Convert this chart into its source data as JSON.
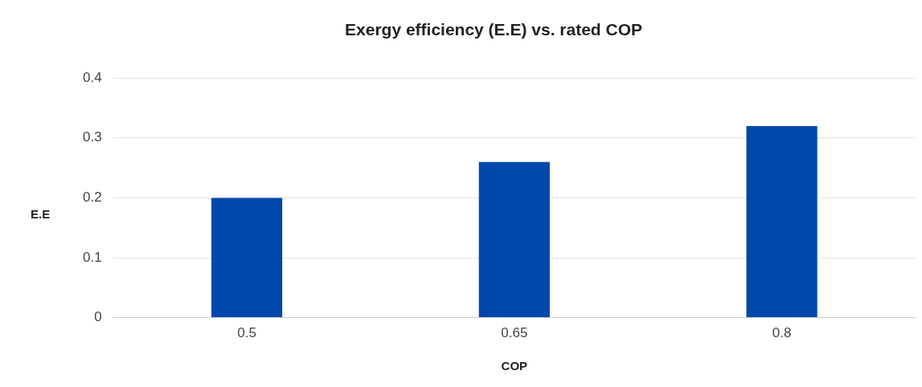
{
  "chart_data": {
    "type": "bar",
    "title": "Exergy efficiency (E.E) vs. rated COP",
    "xlabel": "COP",
    "ylabel": "E.E",
    "categories": [
      "0.5",
      "0.65",
      "0.8"
    ],
    "values": [
      0.2,
      0.26,
      0.32
    ],
    "color": "#0047ab",
    "ylim": [
      0,
      0.4
    ],
    "yticks": [
      0,
      0.1,
      0.2,
      0.3,
      0.4
    ],
    "grid": "y",
    "legend": false
  }
}
